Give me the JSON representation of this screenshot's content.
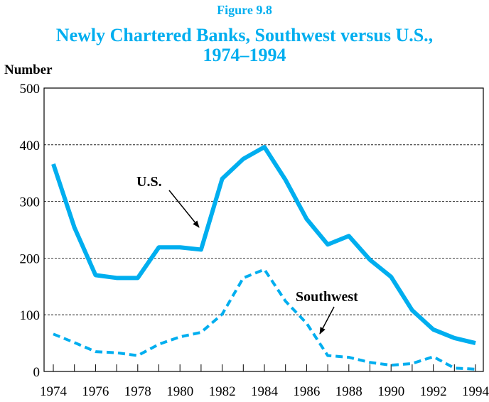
{
  "chart_data": {
    "type": "line",
    "figure_label": "Figure 9.8",
    "title_lines": [
      "Newly Chartered Banks, Southwest versus U.S.,",
      "1974–1994"
    ],
    "y_label": "Number",
    "x": [
      1974,
      1975,
      1976,
      1977,
      1978,
      1979,
      1980,
      1981,
      1982,
      1983,
      1984,
      1985,
      1986,
      1987,
      1988,
      1989,
      1990,
      1991,
      1992,
      1993,
      1994
    ],
    "series": [
      {
        "name": "U.S.",
        "color": "#00aeef",
        "dashed": false,
        "values": [
          366,
          254,
          170,
          165,
          165,
          219,
          219,
          215,
          340,
          375,
          396,
          338,
          269,
          224,
          239,
          197,
          167,
          108,
          74,
          59,
          50
        ]
      },
      {
        "name": "Southwest",
        "color": "#00aeef",
        "dashed": true,
        "values": [
          66,
          51,
          35,
          33,
          28,
          48,
          61,
          69,
          101,
          165,
          180,
          124,
          85,
          28,
          25,
          16,
          11,
          14,
          26,
          6,
          4
        ]
      }
    ],
    "xlim": [
      1974,
      1994
    ],
    "xticks": [
      1974,
      1976,
      1978,
      1980,
      1982,
      1984,
      1986,
      1988,
      1990,
      1992,
      1994
    ],
    "ylim": [
      0,
      500
    ],
    "yticks": [
      0,
      100,
      200,
      300,
      400,
      500
    ],
    "grid": true
  }
}
